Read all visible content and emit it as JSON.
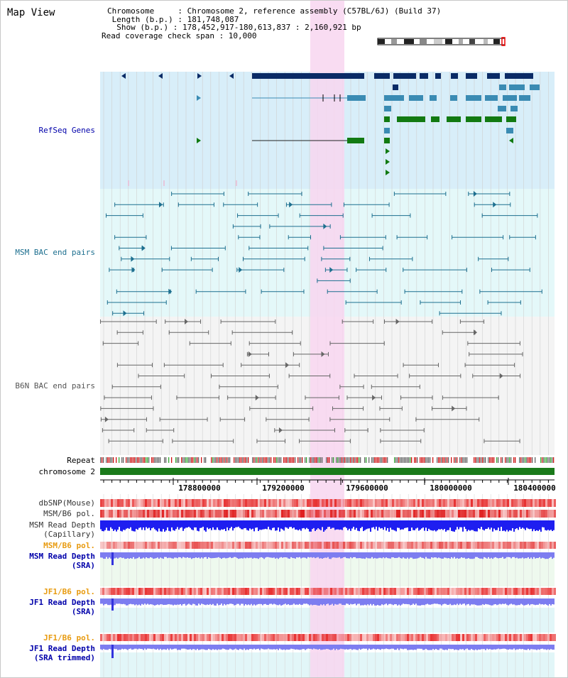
{
  "page": {
    "title": "Map View"
  },
  "info": {
    "chromosome": "Chromosome     : Chromosome 2, reference assembly (C57BL/6J) (Build 37)",
    "length": " Length (b.p.) : 181,748,087",
    "show": "  Show (b.p.) : 178,452,917-180,613,837 : 2,160,921 bp",
    "coverage": "Read coverage check span : 10,000"
  },
  "tracks": {
    "refseq": "RefSeq Genes",
    "msm_bac": "MSM BAC end pairs",
    "b6n_bac": "B6N BAC end pairs",
    "repeat": "Repeat",
    "chromosome": "chromosome 2",
    "dbsnp": "dbSNP(Mouse)",
    "msm_b6_pol": "MSM/B6 pol.",
    "msm_depth_cap_1": "MSM Read Depth",
    "msm_depth_cap_2": "(Capillary)",
    "msm_b6_pol2": "MSM/B6 pol.",
    "msm_depth_sra_1": "MSM Read Depth",
    "msm_depth_sra_2": "(SRA)",
    "jf1_b6_pol": "JF1/B6 pol.",
    "jf1_depth_sra_1": "JF1 Read Depth",
    "jf1_depth_sra_2": "(SRA)",
    "jf1_b6_pol2": "JF1/B6 pol.",
    "jf1_depth_trim_1": "JF1 Read Depth",
    "jf1_depth_trim_2": "(SRA trimmed)"
  },
  "axis": {
    "ticks": [
      "178800000",
      "179200000",
      "179600000",
      "180000000",
      "180400000"
    ]
  },
  "colors": {
    "refseq_bg": "#d8eef9",
    "msm_bg": "#e4f8f9",
    "b6n_bg": "#f4f4f4",
    "highlight": "#f8d6f0",
    "refseq_dark": "#0a2b66",
    "refseq_mid": "#3a8bb3",
    "refseq_green": "#127a12",
    "msm_line": "#1d6f8f",
    "b6n_line": "#666666",
    "chromosome": "#1a7a1a",
    "label_blue": "#0000aa",
    "label_orange": "#e89b10"
  }
}
